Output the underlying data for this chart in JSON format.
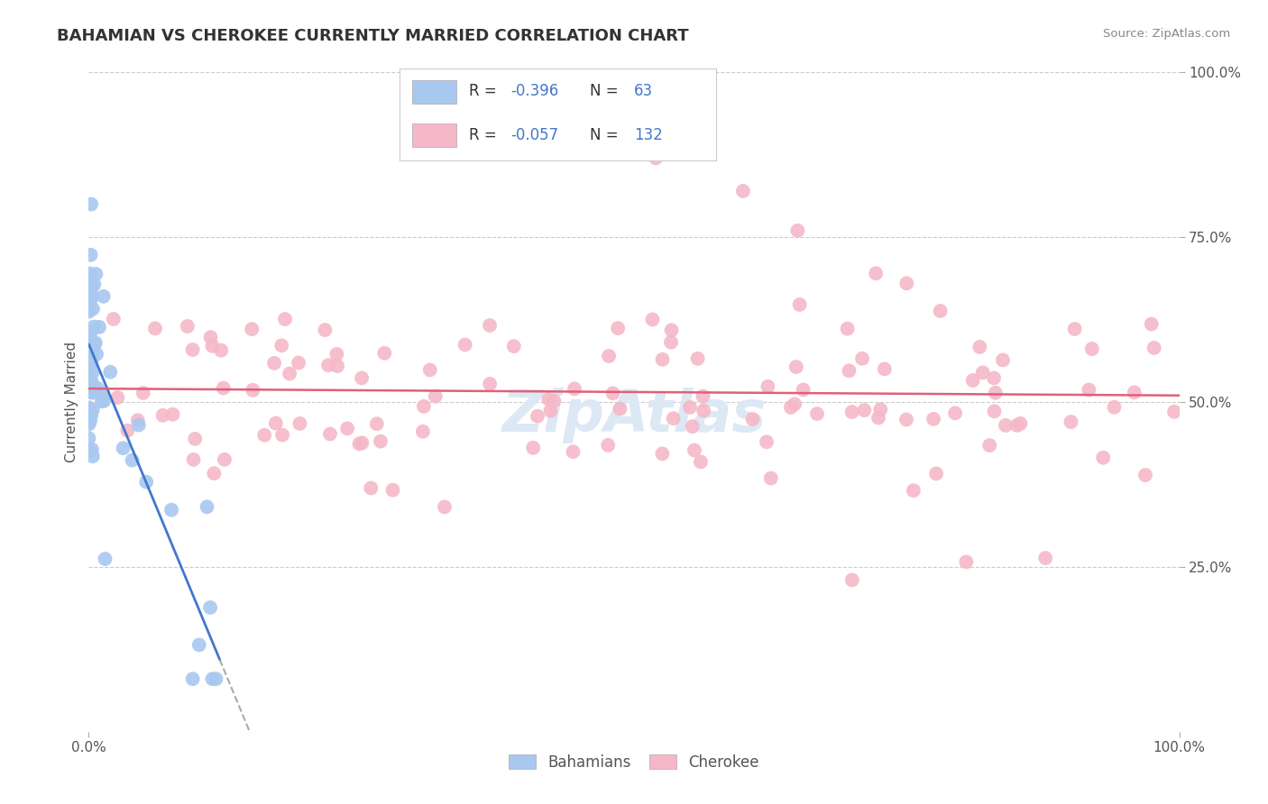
{
  "title": "BAHAMIAN VS CHEROKEE CURRENTLY MARRIED CORRELATION CHART",
  "source": "Source: ZipAtlas.com",
  "ylabel": "Currently Married",
  "legend_label1": "Bahamians",
  "legend_label2": "Cherokee",
  "R1": -0.396,
  "N1": 63,
  "R2": -0.057,
  "N2": 132,
  "color_bahamian": "#a8c8f0",
  "color_cherokee": "#f5b8c8",
  "color_line1": "#4477cc",
  "color_line2": "#e0607a",
  "watermark": "ZipAtlas",
  "title_fontsize": 13,
  "tick_fontsize": 11,
  "ylabel_fontsize": 11
}
